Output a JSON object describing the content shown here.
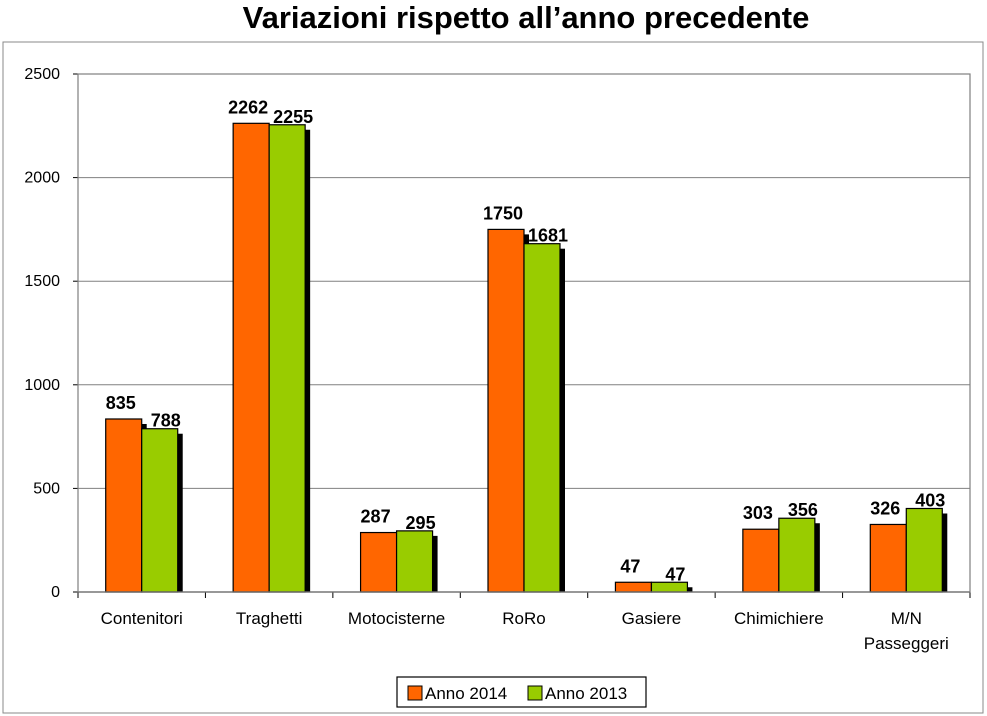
{
  "chart_data": {
    "type": "bar",
    "title": "Variazioni rispetto all’anno precedente",
    "categories": [
      [
        "Contenitori"
      ],
      [
        "Traghetti"
      ],
      [
        "Motocisterne"
      ],
      [
        "RoRo"
      ],
      [
        "Gasiere"
      ],
      [
        "Chimichiere"
      ],
      [
        "M/N",
        "Passeggeri"
      ]
    ],
    "series": [
      {
        "name": "Anno 2014",
        "color": "#ff6600",
        "values": [
          835,
          2262,
          287,
          1750,
          47,
          303,
          326
        ]
      },
      {
        "name": "Anno 2013",
        "color": "#99cc00",
        "values": [
          788,
          2255,
          295,
          1681,
          47,
          356,
          403
        ]
      }
    ],
    "ylim": [
      0,
      2500
    ],
    "yticks": [
      0,
      500,
      1000,
      1500,
      2000,
      2500
    ],
    "grid": true,
    "legend": "bottom"
  }
}
